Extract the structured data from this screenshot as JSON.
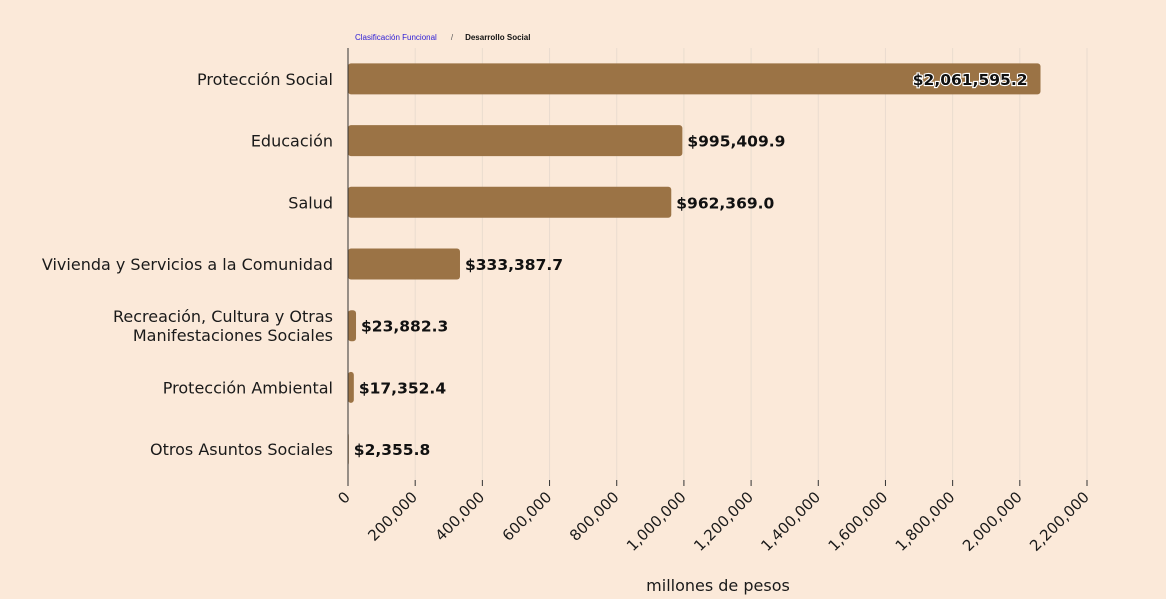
{
  "breadcrumb": {
    "root_label": "Clasificación Funcional",
    "separator": "/",
    "current_label": "Desarrollo Social"
  },
  "colors": {
    "background": "#fbe9d9",
    "bar": "#9b7345",
    "grid": "#eadccf",
    "link": "#2b1bd6"
  },
  "chart_data": {
    "type": "bar",
    "orientation": "horizontal",
    "title": "",
    "xlabel": "millones de pesos",
    "ylabel": "",
    "xlim": [
      0,
      2200000
    ],
    "grid": true,
    "categories": [
      [
        "Protección Social"
      ],
      [
        "Educación"
      ],
      [
        "Salud"
      ],
      [
        "Vivienda y Servicios a la Comunidad"
      ],
      [
        "Recreación, Cultura y Otras",
        "Manifestaciones Sociales"
      ],
      [
        "Protección Ambiental"
      ],
      [
        "Otros Asuntos Sociales"
      ]
    ],
    "values": [
      2061595.2,
      995409.9,
      962369.0,
      333387.7,
      23882.3,
      17352.4,
      2355.8
    ],
    "value_labels": [
      "$2,061,595.2",
      "$995,409.9",
      "$962,369.0",
      "$333,387.7",
      "$23,882.3",
      "$17,352.4",
      "$2,355.8"
    ],
    "ticks": [
      0,
      200000,
      400000,
      600000,
      800000,
      1000000,
      1200000,
      1400000,
      1600000,
      1800000,
      2000000,
      2200000
    ],
    "tick_labels": [
      "0",
      "200,000",
      "400,000",
      "600,000",
      "800,000",
      "1,000,000",
      "1,200,000",
      "1,400,000",
      "1,600,000",
      "1,800,000",
      "2,000,000",
      "2,200,000"
    ]
  }
}
